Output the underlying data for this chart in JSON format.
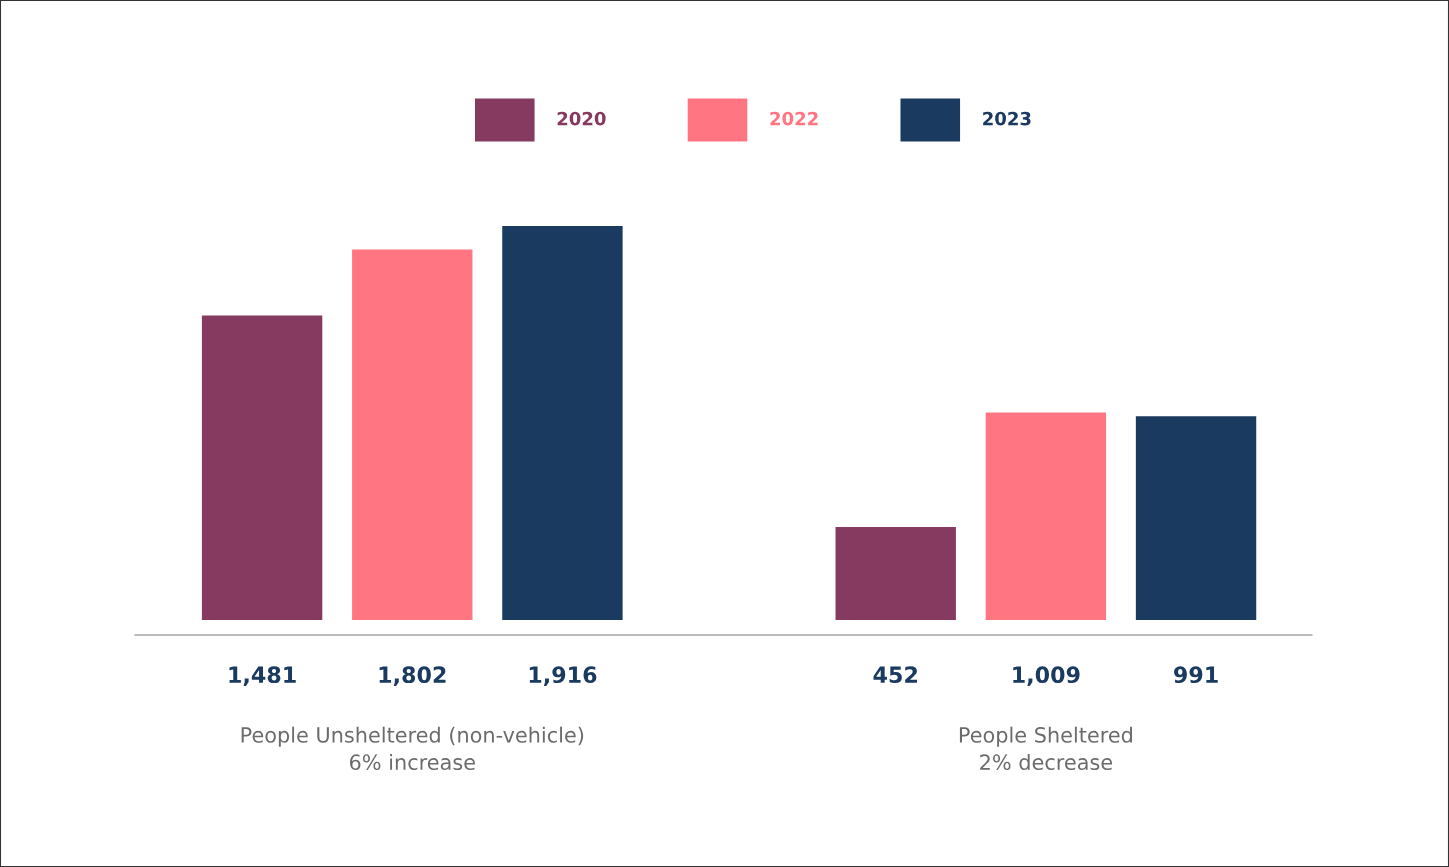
{
  "chart_data": {
    "type": "bar",
    "categories": [
      "People Unsheltered (non-vehicle)\n6% increase",
      "People Sheltered\n2% decrease"
    ],
    "series": [
      {
        "name": "2020",
        "color": "#873a5f",
        "values": [
          1481,
          452
        ],
        "value_labels": [
          "1,481",
          "452"
        ]
      },
      {
        "name": "2022",
        "color": "#ff7582",
        "values": [
          1802,
          1009
        ],
        "value_labels": [
          "1,802",
          "1,009"
        ]
      },
      {
        "name": "2023",
        "color": "#1b3a60",
        "values": [
          1916,
          991
        ],
        "value_labels": [
          "1,916",
          "991"
        ]
      }
    ],
    "legend": "top"
  }
}
